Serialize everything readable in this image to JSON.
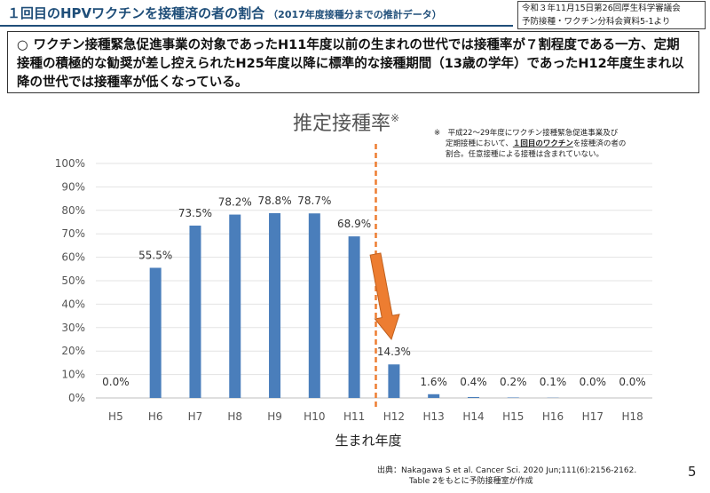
{
  "header": {
    "title": "１回目のHPVワクチンを接種済の者の割合",
    "subtitle": "（2017年度接種分までの推計データ）",
    "source_line1": "令和３年11月15日第26回厚生科学審議会",
    "source_line2": "予防接種・ワクチン分科会資料5-1より"
  },
  "summary": {
    "bullet": "○",
    "text": "ワクチン接種緊急促進事業の対象であったH11年度以前の生まれの世代では接種率が７割程度である一方、定期接種の積極的な勧奨が差し控えられたH25年度以降に標準的な接種期間（13歳の学年）であったH12年度生まれ以降の世代では接種率が低くなっている。"
  },
  "chart_note": {
    "line1": "※　平成22～29年度にワクチン接種緊急促進事業及び",
    "line2_pre": "定期接種において、",
    "line2_em": "１回目のワクチン",
    "line2_post": "を接種済の者の",
    "line3": "割合。任意接種による接種は含まれていない。"
  },
  "chart_data": {
    "type": "bar",
    "title": "推定接種率",
    "title_mark": "※",
    "xlabel": "生まれ年度",
    "ylabel": "",
    "categories": [
      "H5",
      "H6",
      "H7",
      "H8",
      "H9",
      "H10",
      "H11",
      "H12",
      "H13",
      "H14",
      "H15",
      "H16",
      "H17",
      "H18"
    ],
    "values": [
      0.0,
      55.5,
      73.5,
      78.2,
      78.8,
      78.7,
      68.9,
      14.3,
      1.6,
      0.4,
      0.2,
      0.1,
      0.0,
      0.0
    ],
    "labels": [
      "0.0%",
      "55.5%",
      "73.5%",
      "78.2%",
      "78.8%",
      "78.7%",
      "68.9%",
      "14.3%",
      "1.6%",
      "0.4%",
      "0.2%",
      "0.1%",
      "0.0%",
      "0.0%"
    ],
    "ylim": [
      0,
      100
    ],
    "yticks": [
      "0%",
      "10%",
      "20%",
      "30%",
      "40%",
      "50%",
      "60%",
      "70%",
      "80%",
      "90%",
      "100%"
    ],
    "bar_color": "#4a7ebb",
    "divider_color": "#ed7d31",
    "arrow_color": "#ed7d31",
    "divider_after_category": "H11"
  },
  "footer": {
    "source_line1": "出典：Nakagawa S et al. Cancer Sci. 2020 Jun;111(6):2156-2162.",
    "source_line2": "Table 2をもとに予防接種室が作成",
    "page_number": "5"
  }
}
